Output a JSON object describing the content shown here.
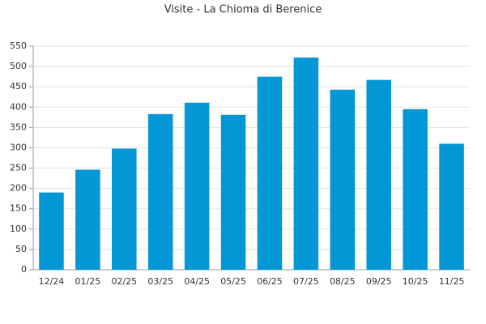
{
  "chart_data": {
    "type": "bar",
    "title": "Visite - La Chioma di Berenice",
    "categories": [
      "12/24",
      "01/25",
      "02/25",
      "03/25",
      "04/25",
      "05/25",
      "06/25",
      "07/25",
      "08/25",
      "09/25",
      "10/25",
      "11/25"
    ],
    "values": [
      190,
      246,
      298,
      383,
      411,
      381,
      475,
      522,
      443,
      467,
      395,
      310
    ],
    "color": "#0497d5",
    "ylim": [
      0,
      550
    ],
    "yticks": [
      0,
      50,
      100,
      150,
      200,
      250,
      300,
      350,
      400,
      450,
      500,
      550
    ],
    "grid": true
  }
}
